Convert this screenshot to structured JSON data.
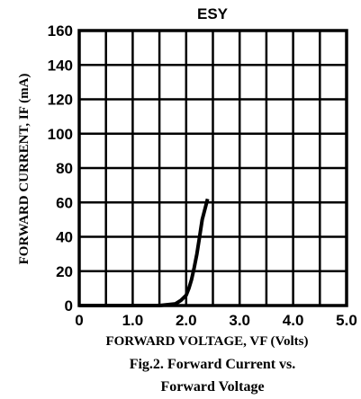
{
  "chart_data": {
    "type": "line",
    "title": "ESY",
    "xlabel": "FORWARD VOLTAGE, VF (Volts)",
    "ylabel": "FORWARD CURRENT, IF (mA)",
    "caption_line1": "Fig.2. Forward Current vs.",
    "caption_line2": "Forward Voltage",
    "xlim": [
      0,
      5
    ],
    "ylim": [
      0,
      160
    ],
    "x_ticks": [
      0,
      1,
      2,
      3,
      4,
      5
    ],
    "x_tick_labels": [
      "0",
      "1.0",
      "2.0",
      "3.0",
      "4.0",
      "5.0"
    ],
    "y_ticks": [
      0,
      20,
      40,
      60,
      80,
      100,
      120,
      140,
      160
    ],
    "y_tick_labels": [
      "0",
      "20",
      "40",
      "60",
      "80",
      "100",
      "120",
      "140",
      "160"
    ],
    "grid": true,
    "series": [
      {
        "x": [
          0.0,
          0.5,
          1.0,
          1.5,
          1.8,
          1.9,
          2.0,
          2.05,
          2.1,
          2.15,
          2.2,
          2.25,
          2.3,
          2.4
        ],
        "y": [
          0,
          0,
          0,
          0,
          1,
          3,
          6,
          10,
          15,
          22,
          30,
          40,
          50,
          62
        ]
      }
    ]
  }
}
